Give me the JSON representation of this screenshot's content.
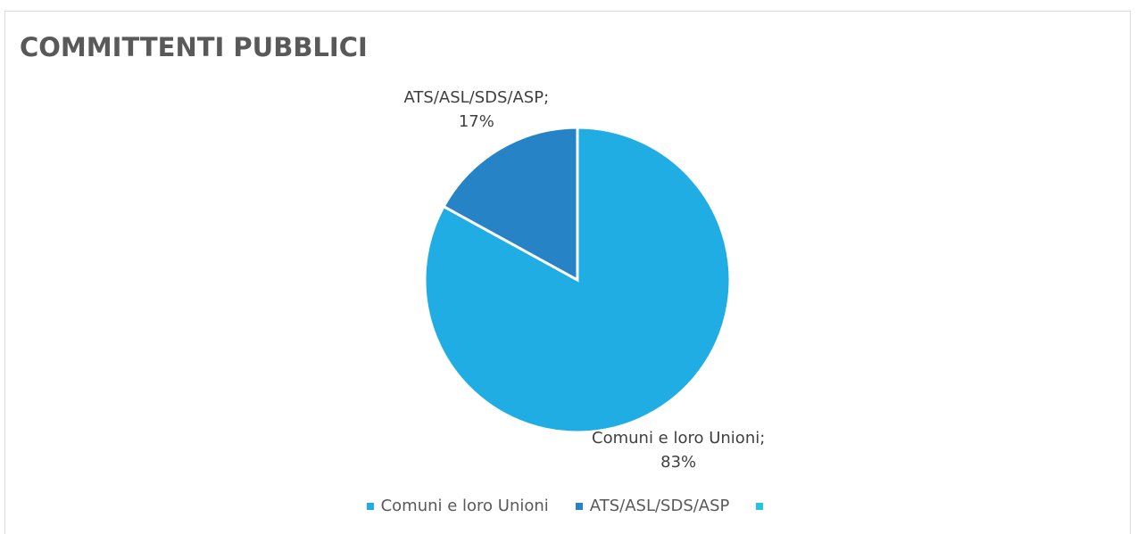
{
  "chart_data": {
    "type": "pie",
    "title": "COMMITTENTI PUBBLICI",
    "categories": [
      "Comuni e loro Unioni",
      "ATS/ASL/SDS/ASP",
      null
    ],
    "values": [
      83,
      17,
      0
    ],
    "value_labels": [
      "Comuni e loro Unioni; 83%",
      "ATS/ASL/SDS/ASP; 17%",
      null
    ],
    "colors": [
      "#1fade3",
      "#2583c6",
      "#27c4e0"
    ],
    "legend": "bottom"
  }
}
